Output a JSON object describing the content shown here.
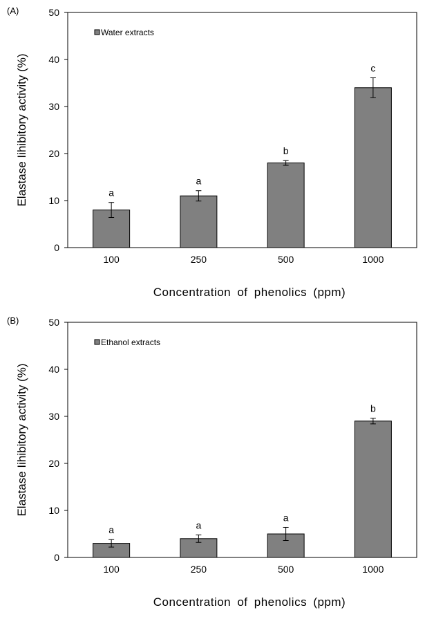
{
  "chart_data": [
    {
      "type": "bar",
      "panel_label": "(A)",
      "categories": [
        "100",
        "250",
        "500",
        "1000"
      ],
      "values": [
        8,
        11,
        18,
        34
      ],
      "errors": [
        1.6,
        1.1,
        0.5,
        2.1
      ],
      "significance_letters": [
        "a",
        "a",
        "b",
        "c"
      ],
      "legend": "Water extracts",
      "legend_position": "top-left",
      "xlabel": "Concentration of phenolics (ppm)",
      "ylabel": "Elastase Iihibitory activity (%)",
      "ylim": [
        0,
        50
      ],
      "yticks": [
        0,
        10,
        20,
        30,
        40,
        50
      ],
      "bar_color": "#808080",
      "grid": false
    },
    {
      "type": "bar",
      "panel_label": "(B)",
      "categories": [
        "100",
        "250",
        "500",
        "1000"
      ],
      "values": [
        3,
        4,
        5,
        29
      ],
      "errors": [
        0.8,
        0.8,
        1.4,
        0.6
      ],
      "significance_letters": [
        "a",
        "a",
        "a",
        "b"
      ],
      "legend": "Ethanol extracts",
      "legend_position": "top-left",
      "xlabel": "Concentration of phenolics (ppm)",
      "ylabel": "Elastase Iihibitory activity (%)",
      "ylim": [
        0,
        50
      ],
      "yticks": [
        0,
        10,
        20,
        30,
        40,
        50
      ],
      "bar_color": "#808080",
      "grid": false
    }
  ]
}
